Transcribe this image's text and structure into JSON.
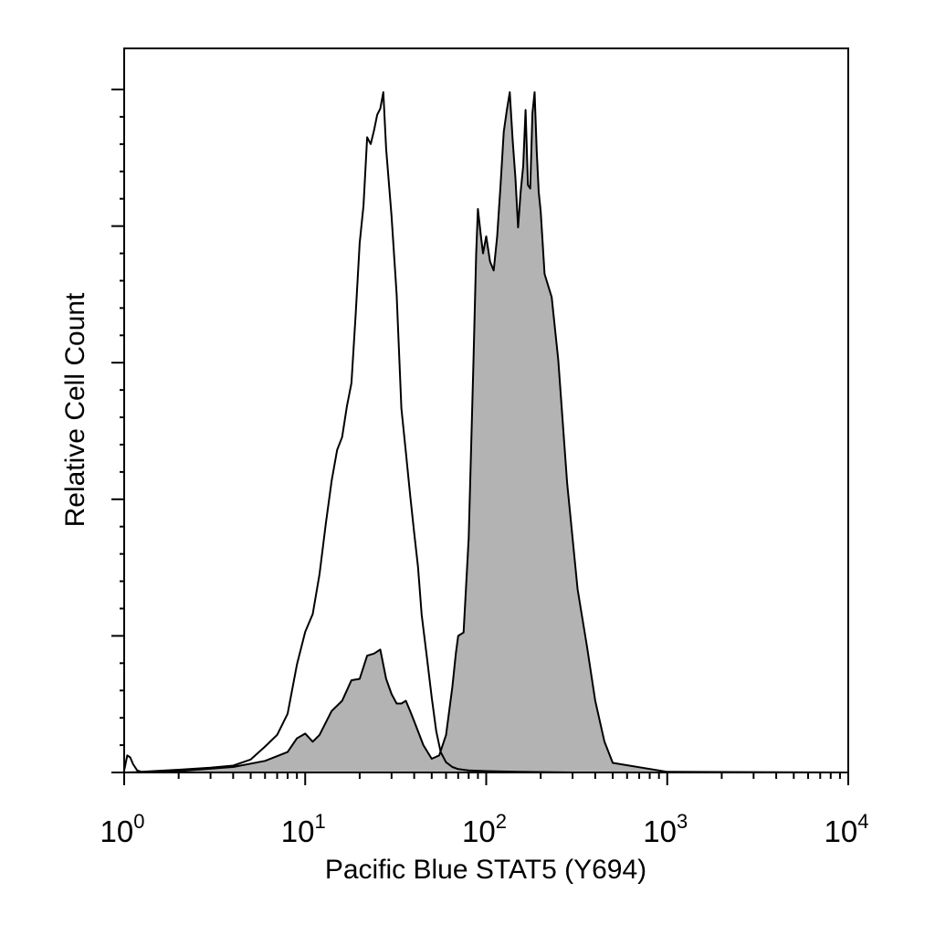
{
  "chart_data": {
    "type": "area",
    "title": "",
    "xlabel": "Pacific Blue STAT5 (Y694)",
    "ylabel": "Relative Cell Count",
    "xscale": "log",
    "xlim": [
      1,
      10000
    ],
    "ylim": [
      0,
      100
    ],
    "grid": false,
    "legend": "none",
    "x_ticks": [
      {
        "base": "10",
        "exp": "0",
        "value": 1
      },
      {
        "base": "10",
        "exp": "1",
        "value": 10
      },
      {
        "base": "10",
        "exp": "2",
        "value": 100
      },
      {
        "base": "10",
        "exp": "3",
        "value": 1000
      },
      {
        "base": "10",
        "exp": "4",
        "value": 10000
      }
    ],
    "y_major_ticks": [
      0,
      20,
      40,
      60,
      80,
      100
    ],
    "series": [
      {
        "style": "outline",
        "color": "#000000",
        "x": [
          1.0,
          1.04,
          1.08,
          1.12,
          1.18,
          1.25,
          2.0,
          3.0,
          4.0,
          5.0,
          6.0,
          7.0,
          8.0,
          9.0,
          10.0,
          11.0,
          12.0,
          13.0,
          14.0,
          15.0,
          16.0,
          17.0,
          18.0,
          19.0,
          20.0,
          21.0,
          22.0,
          23.0,
          24.0,
          25.0,
          26.0,
          27.0,
          28.0,
          30.0,
          32.0,
          34.0,
          36.0,
          38.0,
          40.0,
          42.0,
          44.0,
          47.0,
          50.0,
          53.0,
          56.0,
          60.0,
          65.0,
          70.0,
          80.0,
          100.0,
          150.0,
          300.0,
          1000.0,
          10000.0
        ],
        "y": [
          0.3,
          2.5,
          2.2,
          1.2,
          0.3,
          0.1,
          0.4,
          0.7,
          1.0,
          1.9,
          3.8,
          5.5,
          8.6,
          15.8,
          20.6,
          23.2,
          29.0,
          36.4,
          42.7,
          47.2,
          49.1,
          53.6,
          57.0,
          67.0,
          77.5,
          83.0,
          93.0,
          92.0,
          94.0,
          96.3,
          97.2,
          99.6,
          91.3,
          81.5,
          70.0,
          53.3,
          46.9,
          40.6,
          35.1,
          30.1,
          23.1,
          16.9,
          11.0,
          6.0,
          3.0,
          1.5,
          0.8,
          0.5,
          0.3,
          0.2,
          0.1,
          0.0,
          0.0,
          0.0
        ]
      },
      {
        "style": "filled",
        "color": "#b3b3b3",
        "x": [
          1.0,
          2.0,
          4.0,
          6.0,
          8.0,
          9.0,
          10.0,
          11.0,
          12.0,
          14.0,
          16.0,
          18.0,
          20.0,
          22.0,
          24.0,
          26.0,
          28.0,
          30.0,
          32.0,
          34.0,
          36.0,
          38.0,
          40.0,
          45.0,
          50.0,
          55.0,
          60.0,
          65.0,
          68.0,
          70.0,
          75.0,
          80.0,
          85.0,
          88.0,
          90.0,
          93.0,
          96.0,
          100.0,
          105.0,
          110.0,
          115.0,
          120.0,
          125.0,
          130.0,
          135.0,
          140.0,
          145.0,
          150.0,
          155.0,
          160.0,
          165.0,
          170.0,
          175.0,
          180.0,
          185.0,
          190.0,
          195.0,
          200.0,
          210.0,
          230.0,
          250.0,
          280.0,
          320.0,
          360.0,
          400.0,
          450.0,
          500.0,
          1000.0,
          10000.0
        ],
        "y": [
          0.0,
          0.2,
          0.8,
          1.7,
          3.0,
          5.0,
          5.7,
          4.5,
          5.5,
          9.0,
          10.5,
          13.5,
          13.7,
          17.1,
          17.4,
          18.0,
          13.7,
          11.5,
          10.1,
          10.1,
          10.5,
          9.0,
          7.5,
          4.0,
          2.0,
          2.5,
          5.5,
          12.5,
          17.5,
          20.0,
          20.5,
          34.3,
          60.0,
          76.0,
          82.5,
          79.0,
          76.0,
          78.5,
          74.8,
          73.5,
          78.5,
          86.0,
          93.8,
          97.0,
          99.6,
          92.5,
          87.0,
          79.8,
          85.0,
          88.8,
          97.0,
          86.0,
          85.5,
          96.5,
          99.6,
          91.0,
          85.0,
          82.1,
          73.0,
          69.6,
          60.4,
          42.4,
          26.8,
          18.5,
          10.5,
          4.5,
          1.4,
          0.1,
          0.0
        ]
      }
    ]
  }
}
